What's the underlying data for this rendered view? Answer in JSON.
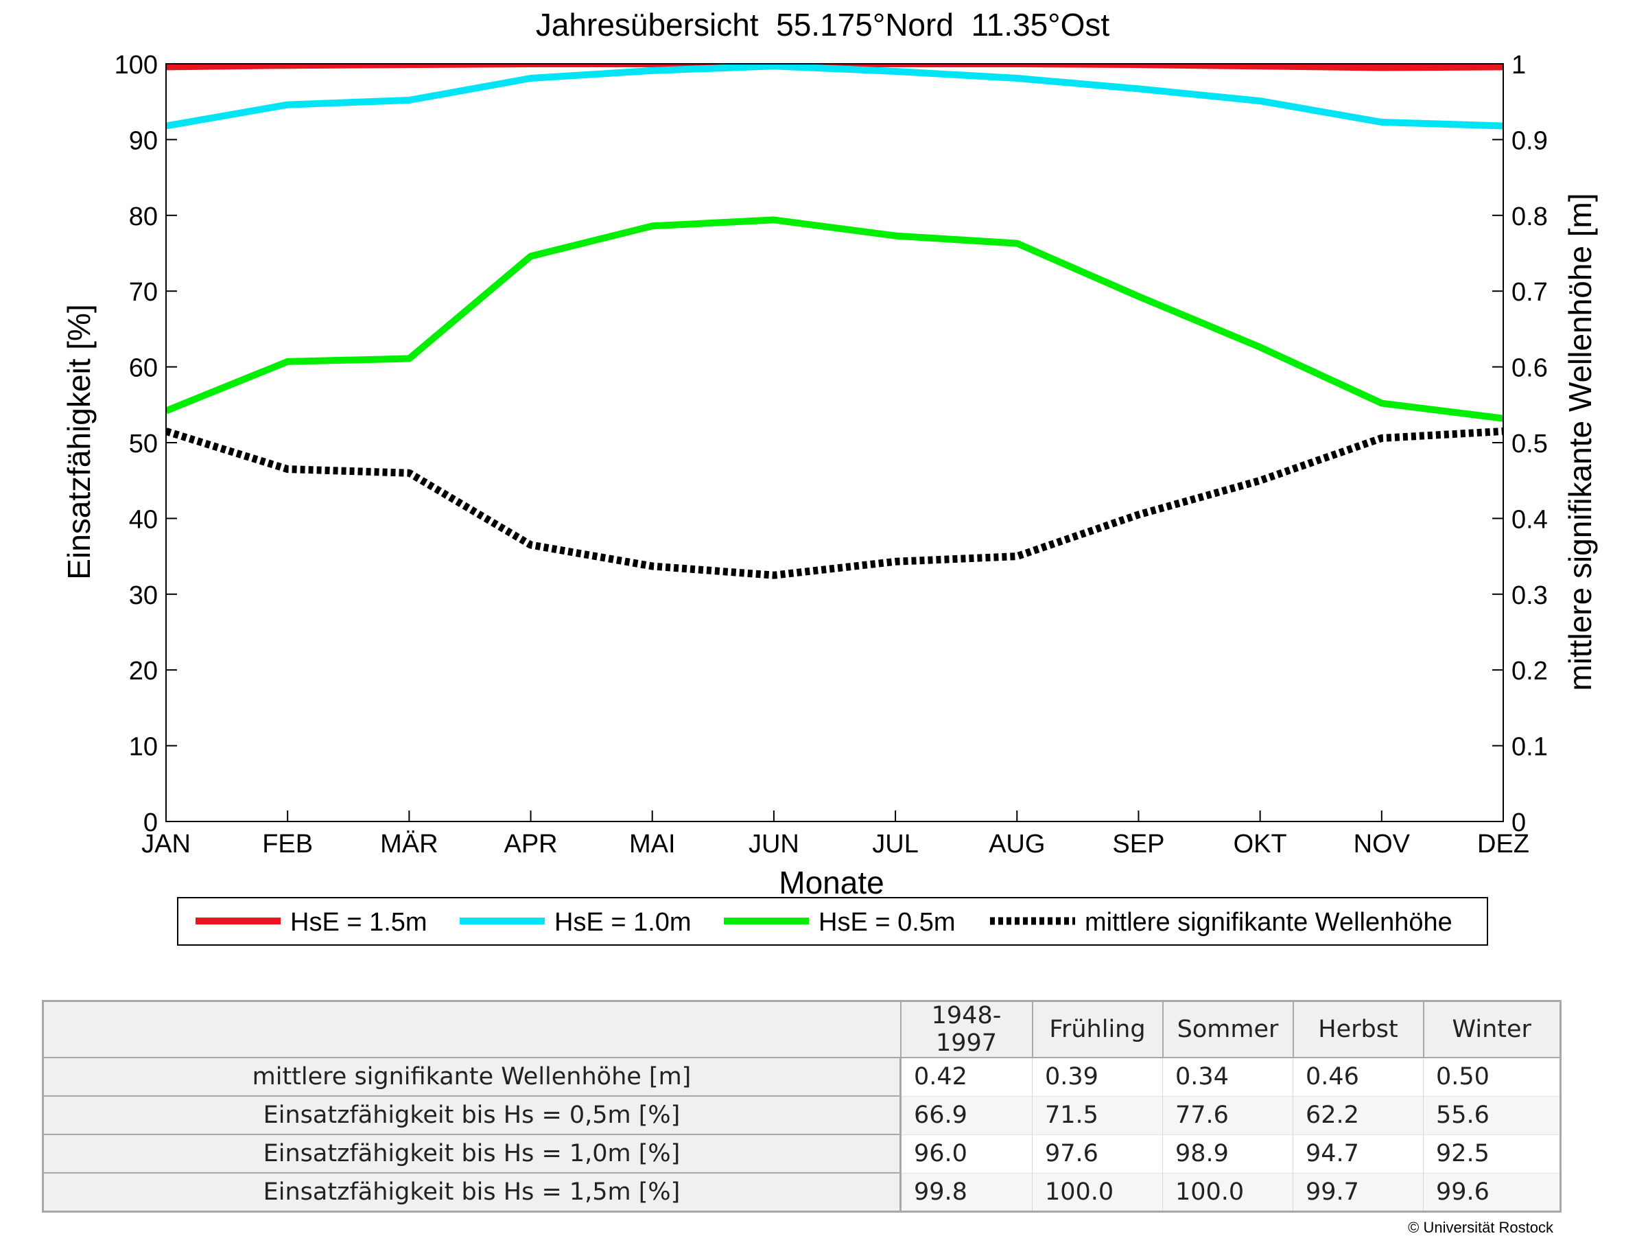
{
  "chart_data": {
    "type": "line",
    "title": "Jahresübersicht  55.175°Nord  11.35°Ost",
    "xlabel": "Monate",
    "ylabel_left": "Einsatzfähigkeit [%]",
    "ylabel_right": "mittlere signifikante Wellenhöhe [m]",
    "categories": [
      "JAN",
      "FEB",
      "MÄR",
      "APR",
      "MAI",
      "JUN",
      "JUL",
      "AUG",
      "SEP",
      "OKT",
      "NOV",
      "DEZ"
    ],
    "ylim_left": [
      0,
      100
    ],
    "ylim_right": [
      0,
      1
    ],
    "yticks_left": [
      "0",
      "10",
      "20",
      "30",
      "40",
      "50",
      "60",
      "70",
      "80",
      "90",
      "100"
    ],
    "yticks_right": [
      "0",
      "0.1",
      "0.2",
      "0.3",
      "0.4",
      "0.5",
      "0.6",
      "0.7",
      "0.8",
      "0.9",
      "1"
    ],
    "grid": false,
    "legend_position": "bottom",
    "series": [
      {
        "name": "HsE = 1.5m",
        "axis": "left",
        "color": "#e8141e",
        "style": "solid",
        "values": [
          99.6,
          99.8,
          99.9,
          100.0,
          100.0,
          100.0,
          100.0,
          100.0,
          99.9,
          99.7,
          99.5,
          99.6
        ]
      },
      {
        "name": "HsE = 1.0m",
        "axis": "left",
        "color": "#00e5f5",
        "style": "solid",
        "values": [
          91.8,
          94.6,
          95.2,
          98.1,
          99.1,
          99.7,
          99.0,
          98.1,
          96.7,
          95.1,
          92.3,
          91.8
        ]
      },
      {
        "name": "HsE = 0.5m",
        "axis": "left",
        "color": "#00ee00",
        "style": "solid",
        "values": [
          54.2,
          60.7,
          61.1,
          74.6,
          78.6,
          79.4,
          77.3,
          76.3,
          69.3,
          62.6,
          55.2,
          53.2
        ]
      },
      {
        "name": "mittlere signifikante Wellenhöhe",
        "axis": "right",
        "color": "#000000",
        "style": "dotted",
        "values": [
          0.515,
          0.465,
          0.46,
          0.365,
          0.337,
          0.325,
          0.343,
          0.35,
          0.405,
          0.45,
          0.506,
          0.515
        ]
      }
    ]
  },
  "table": {
    "headers": [
      "1948-1997",
      "Frühling",
      "Sommer",
      "Herbst",
      "Winter"
    ],
    "rows": [
      {
        "label": "mittlere signifikante Wellenhöhe [m]",
        "values": [
          "0.42",
          "0.39",
          "0.34",
          "0.46",
          "0.50"
        ]
      },
      {
        "label": "Einsatzfähigkeit bis Hs = 0,5m [%]",
        "values": [
          "66.9",
          "71.5",
          "77.6",
          "62.2",
          "55.6"
        ]
      },
      {
        "label": "Einsatzfähigkeit bis Hs = 1,0m [%]",
        "values": [
          "96.0",
          "97.6",
          "98.9",
          "94.7",
          "92.5"
        ]
      },
      {
        "label": "Einsatzfähigkeit bis Hs = 1,5m [%]",
        "values": [
          "99.8",
          "100.0",
          "100.0",
          "99.7",
          "99.6"
        ]
      }
    ]
  },
  "copyright": "© Universität Rostock"
}
